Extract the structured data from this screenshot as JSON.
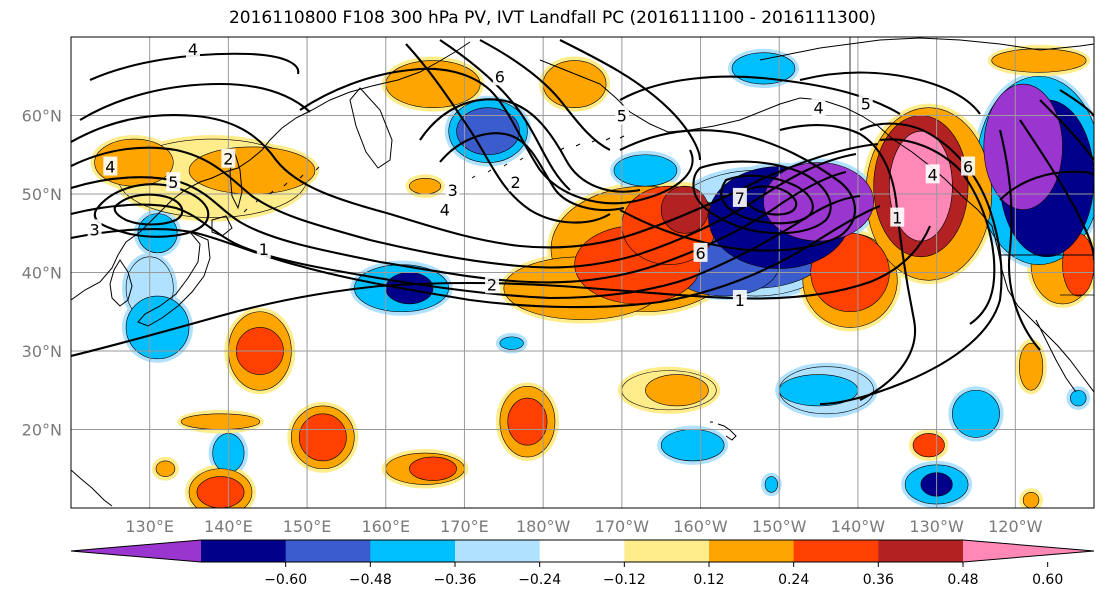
{
  "title": "2016110800 F108 300 hPa PV, IVT Landfall PC (2016111100 - 2016111300)",
  "map": {
    "projection": "cylindrical",
    "lon_range": [
      120,
      250
    ],
    "lat_range": [
      10,
      70
    ],
    "grid": true,
    "lat_labels": [
      {
        "lat": 60,
        "text": "60°N"
      },
      {
        "lat": 50,
        "text": "50°N"
      },
      {
        "lat": 40,
        "text": "40°N"
      },
      {
        "lat": 30,
        "text": "30°N"
      },
      {
        "lat": 20,
        "text": "20°N"
      }
    ],
    "lon_labels": [
      {
        "lon": 130,
        "text": "130°E"
      },
      {
        "lon": 140,
        "text": "140°E"
      },
      {
        "lon": 150,
        "text": "150°E"
      },
      {
        "lon": 160,
        "text": "160°E"
      },
      {
        "lon": 170,
        "text": "170°E"
      },
      {
        "lon": 180,
        "text": "180°W"
      },
      {
        "lon": 190,
        "text": "170°W"
      },
      {
        "lon": 200,
        "text": "160°W"
      },
      {
        "lon": 210,
        "text": "150°W"
      },
      {
        "lon": 220,
        "text": "140°W"
      },
      {
        "lon": 230,
        "text": "130°W"
      },
      {
        "lon": 240,
        "text": "120°W"
      }
    ]
  },
  "colorbar": {
    "colors": [
      "#9a35cf",
      "#00008b",
      "#3a5ccc",
      "#00bfff",
      "#b0e2ff",
      "#ffffff",
      "#ffec8b",
      "#ffa500",
      "#ff4000",
      "#b22222",
      "#ff88b6"
    ],
    "ticks": [
      "−0.60",
      "−0.48",
      "−0.36",
      "−0.24",
      "−0.12",
      "0.12",
      "0.24",
      "0.36",
      "0.48",
      "0.60"
    ],
    "extend": "both"
  },
  "shading": [
    {
      "lon": 215,
      "lat": 49,
      "rx": 7,
      "ry": 5,
      "level": -0.62
    },
    {
      "lon": 210,
      "lat": 47,
      "rx": 9,
      "ry": 6.5,
      "level": -0.5
    },
    {
      "lon": 207,
      "lat": 44,
      "rx": 10,
      "ry": 6,
      "level": -0.38
    },
    {
      "lon": 203,
      "lat": 41,
      "rx": 7,
      "ry": 4,
      "level": -0.38
    },
    {
      "lon": 207,
      "lat": 45,
      "rx": 12,
      "ry": 8,
      "level": -0.2
    },
    {
      "lon": 241,
      "lat": 56,
      "rx": 5,
      "ry": 8,
      "level": -0.65
    },
    {
      "lon": 244,
      "lat": 52,
      "rx": 6,
      "ry": 10,
      "level": -0.5
    },
    {
      "lon": 243,
      "lat": 53,
      "rx": 8,
      "ry": 12,
      "level": -0.3
    },
    {
      "lon": 228,
      "lat": 51,
      "rx": 4,
      "ry": 7,
      "level": 0.65
    },
    {
      "lon": 228,
      "lat": 51,
      "rx": 6,
      "ry": 9,
      "level": 0.5
    },
    {
      "lon": 229,
      "lat": 50,
      "rx": 8,
      "ry": 11,
      "level": 0.3
    },
    {
      "lon": 198,
      "lat": 48,
      "rx": 3,
      "ry": 3,
      "level": 0.5
    },
    {
      "lon": 196,
      "lat": 46,
      "rx": 6,
      "ry": 5,
      "level": 0.4
    },
    {
      "lon": 192,
      "lat": 41,
      "rx": 8,
      "ry": 5,
      "level": 0.38
    },
    {
      "lon": 193,
      "lat": 43,
      "rx": 12,
      "ry": 8,
      "level": 0.25
    },
    {
      "lon": 185,
      "lat": 38,
      "rx": 10,
      "ry": 4,
      "level": 0.3
    },
    {
      "lon": 219,
      "lat": 40,
      "rx": 5,
      "ry": 5,
      "level": 0.4
    },
    {
      "lon": 219,
      "lat": 39,
      "rx": 6,
      "ry": 6,
      "level": 0.26
    },
    {
      "lon": 128,
      "lat": 54,
      "rx": 5,
      "ry": 3,
      "level": 0.28
    },
    {
      "lon": 143,
      "lat": 53,
      "rx": 8,
      "ry": 3,
      "level": 0.3
    },
    {
      "lon": 138,
      "lat": 52,
      "rx": 12,
      "ry": 5,
      "level": 0.15
    },
    {
      "lon": 131,
      "lat": 45,
      "rx": 2.5,
      "ry": 2.5,
      "level": -0.35
    },
    {
      "lon": 131,
      "lat": 33,
      "rx": 4,
      "ry": 4,
      "level": -0.35
    },
    {
      "lon": 130,
      "lat": 38,
      "rx": 3,
      "ry": 4,
      "level": -0.2
    },
    {
      "lon": 163,
      "lat": 38,
      "rx": 3,
      "ry": 2,
      "level": -0.5
    },
    {
      "lon": 162,
      "lat": 38,
      "rx": 6,
      "ry": 3,
      "level": -0.3
    },
    {
      "lon": 184,
      "lat": 64,
      "rx": 4,
      "ry": 3,
      "level": 0.28
    },
    {
      "lon": 166,
      "lat": 64,
      "rx": 6,
      "ry": 3,
      "level": 0.28
    },
    {
      "lon": 173,
      "lat": 58,
      "rx": 4,
      "ry": 3,
      "level": -0.4
    },
    {
      "lon": 173,
      "lat": 58,
      "rx": 5,
      "ry": 4,
      "level": -0.25
    },
    {
      "lon": 193,
      "lat": 53,
      "rx": 4,
      "ry": 2,
      "level": -0.3
    },
    {
      "lon": 208,
      "lat": 66,
      "rx": 4,
      "ry": 2,
      "level": -0.3
    },
    {
      "lon": 243,
      "lat": 67,
      "rx": 6,
      "ry": 1.5,
      "level": 0.3
    },
    {
      "lon": 144,
      "lat": 30,
      "rx": 3,
      "ry": 3,
      "level": 0.4
    },
    {
      "lon": 144,
      "lat": 30,
      "rx": 4,
      "ry": 5,
      "level": 0.28
    },
    {
      "lon": 152,
      "lat": 19,
      "rx": 3,
      "ry": 3,
      "level": 0.4
    },
    {
      "lon": 152,
      "lat": 19,
      "rx": 4,
      "ry": 4,
      "level": 0.28
    },
    {
      "lon": 166,
      "lat": 15,
      "rx": 3,
      "ry": 1.5,
      "level": 0.4
    },
    {
      "lon": 165,
      "lat": 15,
      "rx": 5,
      "ry": 2,
      "level": 0.25
    },
    {
      "lon": 178,
      "lat": 21,
      "rx": 2.5,
      "ry": 3,
      "level": 0.42
    },
    {
      "lon": 178,
      "lat": 21,
      "rx": 3.5,
      "ry": 4.5,
      "level": 0.28
    },
    {
      "lon": 197,
      "lat": 25,
      "rx": 4,
      "ry": 2,
      "level": 0.3
    },
    {
      "lon": 196,
      "lat": 25,
      "rx": 6,
      "ry": 2.5,
      "level": 0.2
    },
    {
      "lon": 229,
      "lat": 18,
      "rx": 2,
      "ry": 1.5,
      "level": 0.4
    },
    {
      "lon": 230,
      "lat": 13,
      "rx": 2,
      "ry": 1.5,
      "level": -0.5
    },
    {
      "lon": 230,
      "lat": 13,
      "rx": 4,
      "ry": 2.5,
      "level": -0.3
    },
    {
      "lon": 215,
      "lat": 25,
      "rx": 5,
      "ry": 2,
      "level": -0.35
    },
    {
      "lon": 216,
      "lat": 25,
      "rx": 6,
      "ry": 3,
      "level": -0.22
    },
    {
      "lon": 235,
      "lat": 22,
      "rx": 3,
      "ry": 3,
      "level": -0.3
    },
    {
      "lon": 199,
      "lat": 18,
      "rx": 4,
      "ry": 2,
      "level": -0.25
    },
    {
      "lon": 140,
      "lat": 17,
      "rx": 2,
      "ry": 2.5,
      "level": -0.25
    },
    {
      "lon": 139,
      "lat": 21,
      "rx": 5,
      "ry": 1,
      "level": 0.28
    },
    {
      "lon": 139,
      "lat": 12,
      "rx": 3,
      "ry": 2,
      "level": 0.4
    },
    {
      "lon": 139,
      "lat": 12,
      "rx": 4,
      "ry": 3,
      "level": 0.25
    },
    {
      "lon": 242,
      "lat": 28,
      "rx": 1.5,
      "ry": 3,
      "level": 0.3
    },
    {
      "lon": 248,
      "lat": 41,
      "rx": 2,
      "ry": 4,
      "level": 0.4
    },
    {
      "lon": 246,
      "lat": 41,
      "rx": 4,
      "ry": 5,
      "level": 0.25
    },
    {
      "lon": 132,
      "lat": 15,
      "rx": 1.2,
      "ry": 1,
      "level": 0.3
    },
    {
      "lon": 242,
      "lat": 11,
      "rx": 1,
      "ry": 1,
      "level": 0.3
    },
    {
      "lon": 248,
      "lat": 24,
      "rx": 1,
      "ry": 1,
      "level": -0.3
    },
    {
      "lon": 209,
      "lat": 13,
      "rx": 0.8,
      "ry": 1,
      "level": -0.3
    },
    {
      "lon": 176,
      "lat": 31,
      "rx": 1.5,
      "ry": 0.8,
      "level": -0.3
    },
    {
      "lon": 165,
      "lat": 51,
      "rx": 2,
      "ry": 1,
      "level": 0.3
    }
  ],
  "contour_labels": [
    {
      "text": "4",
      "lon": 135.5,
      "lat": 68.5
    },
    {
      "text": "6",
      "lon": 174.5,
      "lat": 65
    },
    {
      "text": "5",
      "lon": 190,
      "lat": 60
    },
    {
      "text": "4",
      "lon": 215,
      "lat": 61
    },
    {
      "text": "5",
      "lon": 221,
      "lat": 61.5
    },
    {
      "text": "4",
      "lon": 125,
      "lat": 53.5
    },
    {
      "text": "2",
      "lon": 140,
      "lat": 54.5
    },
    {
      "text": "5",
      "lon": 133,
      "lat": 51.5
    },
    {
      "text": "3",
      "lon": 123,
      "lat": 45.5
    },
    {
      "text": "1",
      "lon": 144.5,
      "lat": 43
    },
    {
      "text": "3",
      "lon": 168.5,
      "lat": 50.5
    },
    {
      "text": "4",
      "lon": 167.5,
      "lat": 48
    },
    {
      "text": "2",
      "lon": 176.5,
      "lat": 51.5
    },
    {
      "text": "7",
      "lon": 205,
      "lat": 49.5
    },
    {
      "text": "6",
      "lon": 200,
      "lat": 42.5
    },
    {
      "text": "2",
      "lon": 173.5,
      "lat": 38.5
    },
    {
      "text": "1",
      "lon": 205,
      "lat": 36.5
    },
    {
      "text": "6",
      "lon": 234,
      "lat": 53.5
    },
    {
      "text": "4",
      "lon": 229.5,
      "lat": 52.5
    },
    {
      "text": "1",
      "lon": 225,
      "lat": 47
    }
  ]
}
